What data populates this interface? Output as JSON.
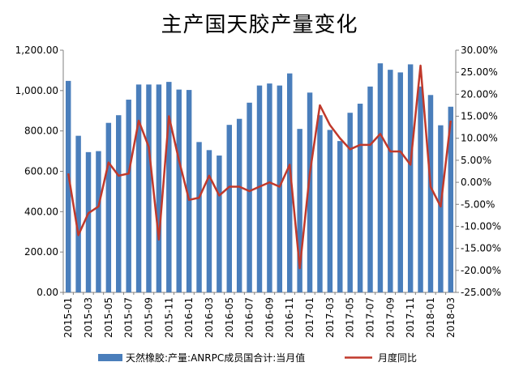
{
  "chart_data": {
    "type": "bar",
    "title": "主产国天胶产量变化",
    "categories": [
      "2015-01",
      "2015-02",
      "2015-03",
      "2015-04",
      "2015-05",
      "2015-06",
      "2015-07",
      "2015-08",
      "2015-09",
      "2015-10",
      "2015-11",
      "2015-12",
      "2016-01",
      "2016-02",
      "2016-03",
      "2016-04",
      "2016-05",
      "2016-06",
      "2016-07",
      "2016-08",
      "2016-09",
      "2016-10",
      "2016-11",
      "2016-12",
      "2017-01",
      "2017-02",
      "2017-03",
      "2017-04",
      "2017-05",
      "2017-06",
      "2017-07",
      "2017-08",
      "2017-09",
      "2017-10",
      "2017-11",
      "2017-12",
      "2018-01",
      "2018-02",
      "2018-03"
    ],
    "x_tick_labels": [
      "2015-01",
      "2015-03",
      "2015-05",
      "2015-07",
      "2015-09",
      "2015-11",
      "2016-01",
      "2016-03",
      "2016-05",
      "2016-07",
      "2016-09",
      "2016-11",
      "2017-01",
      "2017-03",
      "2017-05",
      "2017-07",
      "2017-09",
      "2017-11",
      "2018-01",
      "2018-03"
    ],
    "series": [
      {
        "name": "天然橡胶:产量:ANRPC成员国合计:当月值",
        "type": "bar",
        "axis": "left",
        "color": "#4a7ebb",
        "values": [
          1048,
          776,
          695,
          700,
          840,
          878,
          955,
          1030,
          1030,
          1030,
          1043,
          1005,
          1003,
          745,
          705,
          678,
          830,
          860,
          940,
          1025,
          1035,
          1025,
          1085,
          810,
          990,
          878,
          805,
          750,
          890,
          935,
          1020,
          1135,
          1103,
          1090,
          1130,
          1020,
          978,
          828,
          920
        ]
      },
      {
        "name": "月度同比",
        "type": "line",
        "axis": "right",
        "color": "#c0392b",
        "values": [
          2.0,
          -12.0,
          -7.0,
          -5.5,
          4.5,
          1.5,
          2.0,
          14.0,
          8.0,
          -13.0,
          15.0,
          5.0,
          -4.0,
          -3.5,
          1.5,
          -3.0,
          -1.0,
          -1.0,
          -2.0,
          -1.0,
          0.0,
          -1.0,
          4.0,
          -19.5,
          2.0,
          17.5,
          13.0,
          10.0,
          7.5,
          8.5,
          8.5,
          11.0,
          7.0,
          7.0,
          4.0,
          26.5,
          -1.0,
          -5.5,
          14.0
        ]
      }
    ],
    "y_left": {
      "ylim": [
        0,
        1200
      ],
      "ticks": [
        "0.00",
        "200.00",
        "400.00",
        "600.00",
        "800.00",
        "1,000.00",
        "1,200.00"
      ]
    },
    "y_right": {
      "ylim": [
        -25,
        30
      ],
      "ticks": [
        "-25.00%",
        "-20.00%",
        "-15.00%",
        "-10.00%",
        "-5.00%",
        "0.00%",
        "5.00%",
        "10.00%",
        "15.00%",
        "20.00%",
        "25.00%",
        "30.00%"
      ]
    },
    "grid": false,
    "legend_position": "bottom"
  },
  "legend": {
    "bar_label": "天然橡胶:产量:ANRPC成员国合计:当月值",
    "line_label": "月度同比"
  }
}
